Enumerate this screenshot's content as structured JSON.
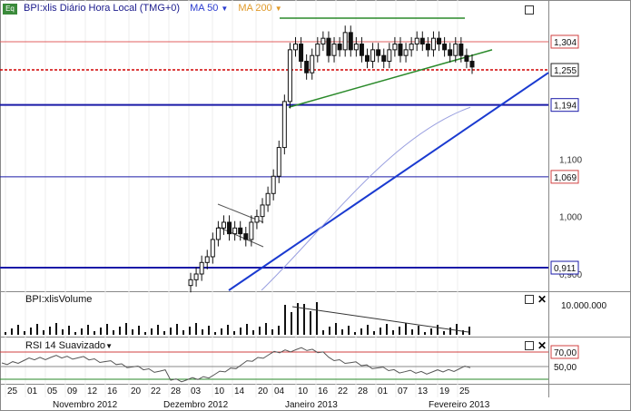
{
  "header": {
    "symbol_label": "BPI:xlis Diário Hora Local (TMG+0)",
    "ma50_label": "MA 50",
    "ma200_label": "MA 200",
    "eq_label": "Eq",
    "dropdown_icon": "caret-down-icon"
  },
  "price_axis": {
    "tick_labels": [
      "1,100",
      "1,000",
      "0,900"
    ],
    "level_labels": [
      "1,304",
      "1,255",
      "1,194",
      "1,069",
      "0,911"
    ]
  },
  "volume_panel": {
    "title": "BPI:xlisVolume",
    "axis_label": "10.000.000"
  },
  "rsi_panel": {
    "title": "RSI 14 Suavizado",
    "axis_labels": [
      "70,00",
      "50,00"
    ]
  },
  "time_axis": {
    "day_labels": [
      "25",
      "01",
      "05",
      "09",
      "12",
      "16",
      "20",
      "22",
      "28",
      "03",
      "10",
      "14",
      "20",
      "04",
      "10",
      "16",
      "22",
      "28",
      "01",
      "07",
      "13",
      "19",
      "25"
    ],
    "month_labels": [
      "Novembro 2012",
      "Dezembro 2012",
      "Janeiro 2013",
      "Fevereiro 2013"
    ]
  },
  "chart_data": {
    "type": "candlestick",
    "x": [
      "22-Nov",
      "26-Nov",
      "28-Nov",
      "30-Nov",
      "03-Dez",
      "05-Dez",
      "07-Dez",
      "11-Dez",
      "13-Dez",
      "17-Dez",
      "19-Dez",
      "21-Dez",
      "27-Dez",
      "02-Jan",
      "03-Jan",
      "04-Jan",
      "07-Jan",
      "08-Jan",
      "09-Jan",
      "10-Jan",
      "11-Jan",
      "14-Jan",
      "15-Jan",
      "16-Jan",
      "17-Jan",
      "18-Jan",
      "21-Jan",
      "22-Jan",
      "23-Jan",
      "24-Jan",
      "25-Jan",
      "28-Jan",
      "29-Jan",
      "30-Jan",
      "31-Jan",
      "01-Fev",
      "04-Fev",
      "05-Fev",
      "06-Fev",
      "07-Fev",
      "08-Fev",
      "11-Fev",
      "12-Fev",
      "13-Fev",
      "14-Fev",
      "15-Fev",
      "18-Fev",
      "19-Fev",
      "20-Fev",
      "21-Fev",
      "22-Fev",
      "25-Fev"
    ],
    "close": [
      0.89,
      0.9,
      0.92,
      0.93,
      0.96,
      0.98,
      0.99,
      0.97,
      0.98,
      0.97,
      0.96,
      0.99,
      1.0,
      1.02,
      1.04,
      1.07,
      1.12,
      1.2,
      1.29,
      1.3,
      1.27,
      1.25,
      1.28,
      1.3,
      1.31,
      1.28,
      1.3,
      1.29,
      1.32,
      1.29,
      1.3,
      1.28,
      1.27,
      1.29,
      1.28,
      1.27,
      1.29,
      1.3,
      1.28,
      1.29,
      1.3,
      1.31,
      1.3,
      1.29,
      1.31,
      1.3,
      1.29,
      1.28,
      1.3,
      1.28,
      1.27,
      1.26
    ],
    "levels": [
      1.304,
      1.255,
      1.194,
      1.069,
      0.911
    ],
    "volume_axis_label": "10.000.000",
    "rsi_levels": [
      70,
      50
    ],
    "ylim": [
      0.87,
      1.345
    ]
  }
}
